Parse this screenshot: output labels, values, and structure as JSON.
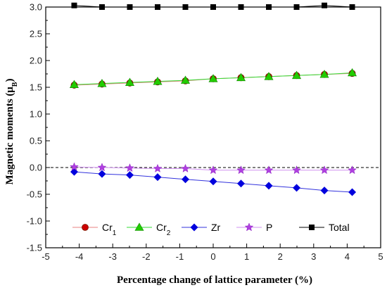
{
  "chart_data": {
    "type": "line",
    "xlabel": "Percentage change of lattice parameter (%)",
    "ylabel_main": "Magnetic moments (μ",
    "ylabel_sub": "B",
    "ylabel_close": ")",
    "xlim": [
      -5,
      5
    ],
    "ylim": [
      -1.5,
      3.0
    ],
    "x_ticks": [
      -5,
      -4,
      -3,
      -2,
      -1,
      0,
      1,
      2,
      3,
      4,
      5
    ],
    "y_ticks": [
      -1.5,
      -1.0,
      -0.5,
      0.0,
      0.5,
      1.0,
      1.5,
      2.0,
      2.5,
      3.0
    ],
    "x_tick_labels": [
      "-5",
      "-4",
      "-3",
      "-2",
      "-1",
      "0",
      "1",
      "2",
      "3",
      "4",
      "5"
    ],
    "y_tick_labels": [
      "-1.5",
      "-1.0",
      "-0.5",
      "0.0",
      "0.5",
      "1.0",
      "1.5",
      "2.0",
      "2.5",
      "3.0"
    ],
    "reference_line": {
      "y": 0.0,
      "style": "dashed"
    },
    "x": [
      -4.15,
      -3.32,
      -2.49,
      -1.66,
      -0.83,
      0.0,
      0.83,
      1.66,
      2.49,
      3.32,
      4.15
    ],
    "series": [
      {
        "name": "Cr",
        "name_sub": "1",
        "marker": "circle",
        "color": "#cc0000",
        "line_color": "#e88080",
        "values": [
          1.54,
          1.56,
          1.58,
          1.6,
          1.62,
          1.66,
          1.68,
          1.7,
          1.72,
          1.74,
          1.76
        ]
      },
      {
        "name": "Cr",
        "name_sub": "2",
        "marker": "triangle",
        "color": "#22cc00",
        "line_color": "#33dd33",
        "values": [
          1.55,
          1.57,
          1.59,
          1.61,
          1.63,
          1.66,
          1.68,
          1.7,
          1.72,
          1.74,
          1.77
        ]
      },
      {
        "name": "Zr",
        "marker": "diamond",
        "color": "#0000dd",
        "line_color": "#3333dd",
        "values": [
          -0.08,
          -0.12,
          -0.14,
          -0.18,
          -0.22,
          -0.26,
          -0.3,
          -0.34,
          -0.38,
          -0.43,
          -0.46
        ]
      },
      {
        "name": "P",
        "marker": "star",
        "color": "#b040e0",
        "line_color": "#d090f0",
        "values": [
          0.01,
          0.0,
          -0.01,
          -0.02,
          -0.02,
          -0.05,
          -0.05,
          -0.05,
          -0.05,
          -0.05,
          -0.05
        ]
      },
      {
        "name": "Total",
        "marker": "square",
        "color": "#000000",
        "line_color": "#000000",
        "values": [
          3.03,
          3.0,
          3.0,
          3.0,
          3.0,
          3.0,
          3.0,
          3.0,
          3.0,
          3.03,
          3.0
        ]
      }
    ],
    "legend_position": "lower-middle",
    "grid": false
  }
}
